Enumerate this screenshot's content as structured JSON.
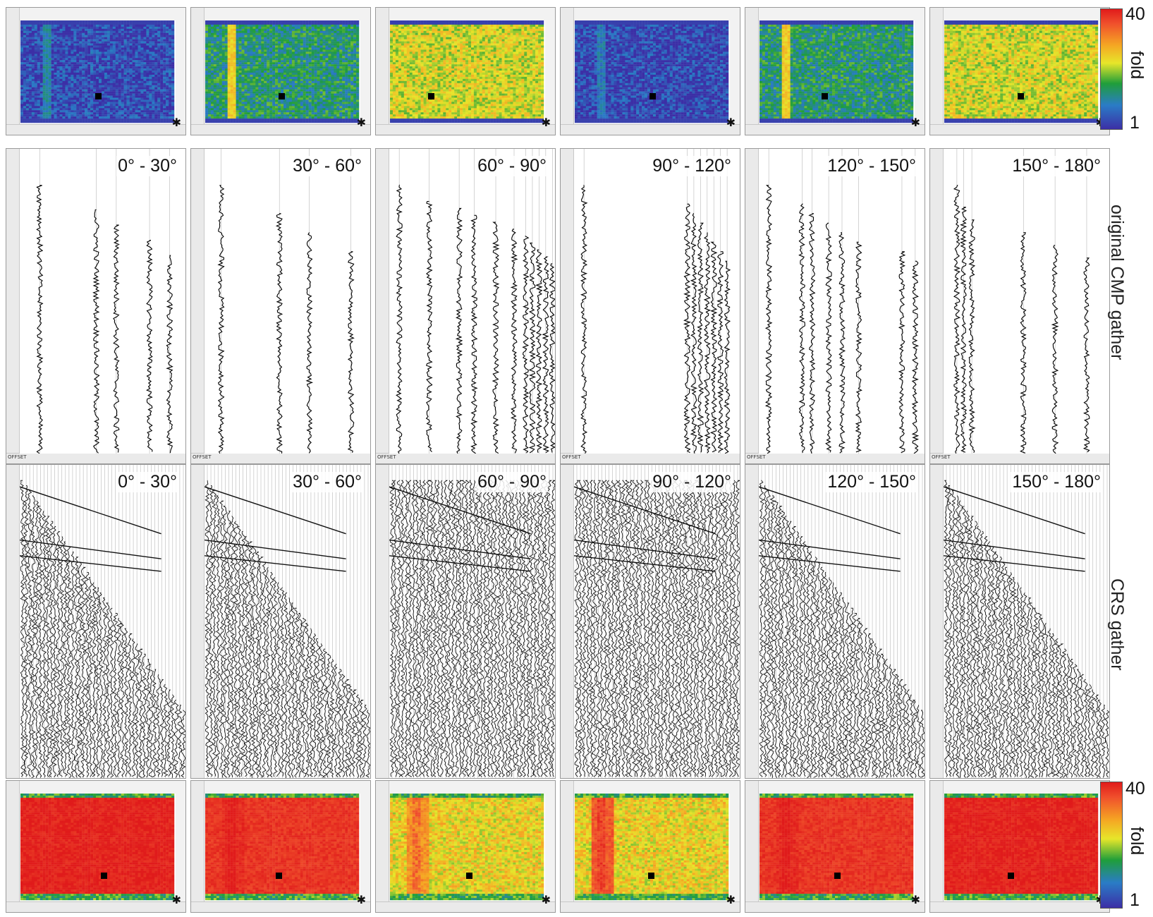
{
  "angle_bins": [
    "0° - 30°",
    "30° - 60°",
    "60° - 90°",
    "90° - 120°",
    "120° - 150°",
    "150° - 180°"
  ],
  "row_labels": {
    "original": "original CMP gather",
    "crs": "CRS gather"
  },
  "colorbar": {
    "max": "40",
    "min": "1",
    "title": "fold",
    "colors": [
      "#e01b1b",
      "#f5a623",
      "#e7e62a",
      "#1f9e3a",
      "#2a7cc6",
      "#3c2fa6"
    ]
  },
  "gather_axis": {
    "offset_tag": "OFFSET"
  },
  "chart_data": [
    {
      "type": "heatmap",
      "title": "",
      "description_source": "top row fold maps (original CMP)",
      "panels": [
        {
          "angle": "0° - 30°",
          "dominant_fold": "low",
          "colormap_stops": [
            "#3c39a6",
            "#1f8f3c"
          ]
        },
        {
          "angle": "30° - 60°",
          "dominant_fold": "low-medium"
        },
        {
          "angle": "60° - 90°",
          "dominant_fold": "medium"
        },
        {
          "angle": "90° - 120°",
          "dominant_fold": "low"
        },
        {
          "angle": "120° - 150°",
          "dominant_fold": "low-medium"
        },
        {
          "angle": "150° - 180°",
          "dominant_fold": "medium"
        }
      ],
      "colorbar_range": [
        1,
        40
      ]
    },
    {
      "type": "heatmap",
      "title": "",
      "description_source": "bottom row fold maps (CRS)",
      "panels": [
        {
          "angle": "0° - 30°",
          "dominant_fold": "high"
        },
        {
          "angle": "30° - 60°",
          "dominant_fold": "high"
        },
        {
          "angle": "60° - 90°",
          "dominant_fold": "medium"
        },
        {
          "angle": "90° - 120°",
          "dominant_fold": "medium"
        },
        {
          "angle": "120° - 150°",
          "dominant_fold": "high"
        },
        {
          "angle": "150° - 180°",
          "dominant_fold": "high"
        }
      ],
      "colorbar_range": [
        1,
        40
      ]
    }
  ]
}
